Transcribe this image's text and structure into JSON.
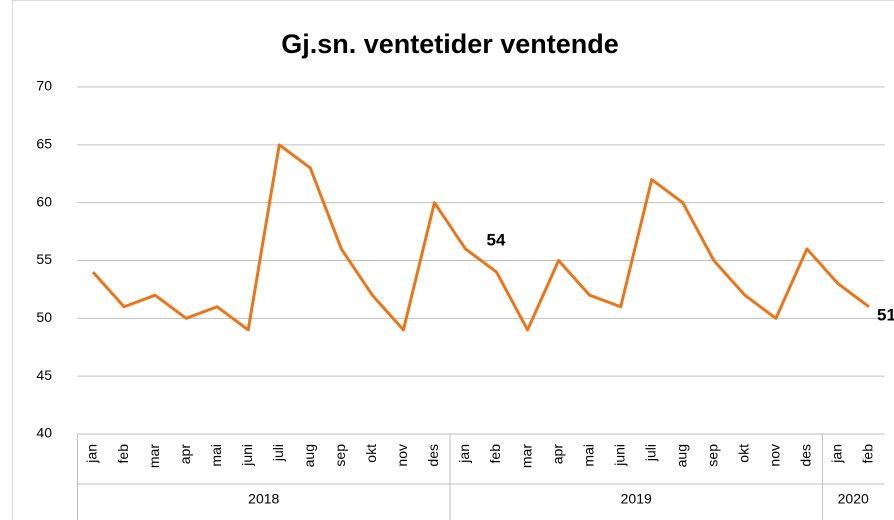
{
  "chart_data": {
    "type": "line",
    "title": "Gj.sn. ventetider ventende",
    "category_groups": [
      {
        "label": "2018",
        "months": [
          "jan",
          "feb",
          "mar",
          "apr",
          "mai",
          "juni",
          "juli",
          "aug",
          "sep",
          "okt",
          "nov",
          "des"
        ]
      },
      {
        "label": "2019",
        "months": [
          "jan",
          "feb",
          "mar",
          "apr",
          "mai",
          "juni",
          "juli",
          "aug",
          "sep",
          "okt",
          "nov",
          "des"
        ]
      },
      {
        "label": "2020",
        "months": [
          "jan",
          "feb"
        ]
      }
    ],
    "series": [
      {
        "color": "#e8761c",
        "values": [
          54,
          51,
          52,
          50,
          51,
          49,
          65,
          63,
          56,
          52,
          49,
          60,
          56,
          54,
          49,
          55,
          52,
          51,
          62,
          60,
          55,
          52,
          50,
          56,
          53,
          51
        ],
        "value_labels": [
          null,
          null,
          null,
          null,
          null,
          null,
          null,
          null,
          null,
          null,
          null,
          null,
          null,
          "54",
          null,
          null,
          null,
          null,
          null,
          null,
          null,
          null,
          null,
          null,
          null,
          "51"
        ]
      }
    ],
    "ylim": [
      40,
      70
    ],
    "yticks": [
      40,
      45,
      50,
      55,
      60,
      65,
      70
    ],
    "grid": true
  }
}
